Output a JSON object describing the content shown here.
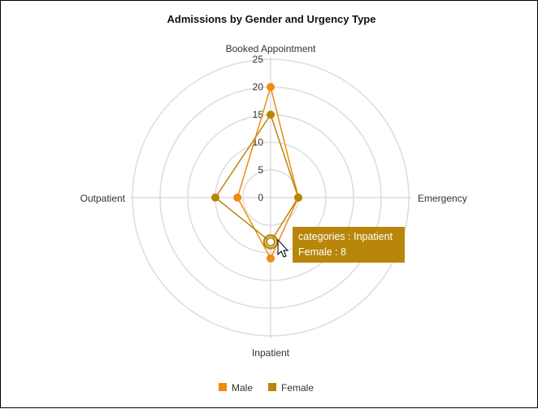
{
  "chart_data": {
    "type": "radar",
    "title": "Admissions by Gender and Urgency Type",
    "categories": [
      "Booked Appointment",
      "Emergency",
      "Inpatient",
      "Outpatient"
    ],
    "radial_axis": {
      "min": 0,
      "max": 25,
      "ticks": [
        0,
        5,
        10,
        15,
        20,
        25
      ]
    },
    "series": [
      {
        "name": "Male",
        "color": "#f08a10",
        "values": [
          20,
          5,
          11,
          6
        ]
      },
      {
        "name": "Female",
        "color": "#b8860b",
        "values": [
          15,
          5,
          8,
          10
        ]
      }
    ],
    "legend_position": "bottom",
    "grid": true,
    "tooltip": {
      "category_line": "categories : Inpatient",
      "value_line": "Female : 8",
      "background": "#b8860b"
    }
  }
}
